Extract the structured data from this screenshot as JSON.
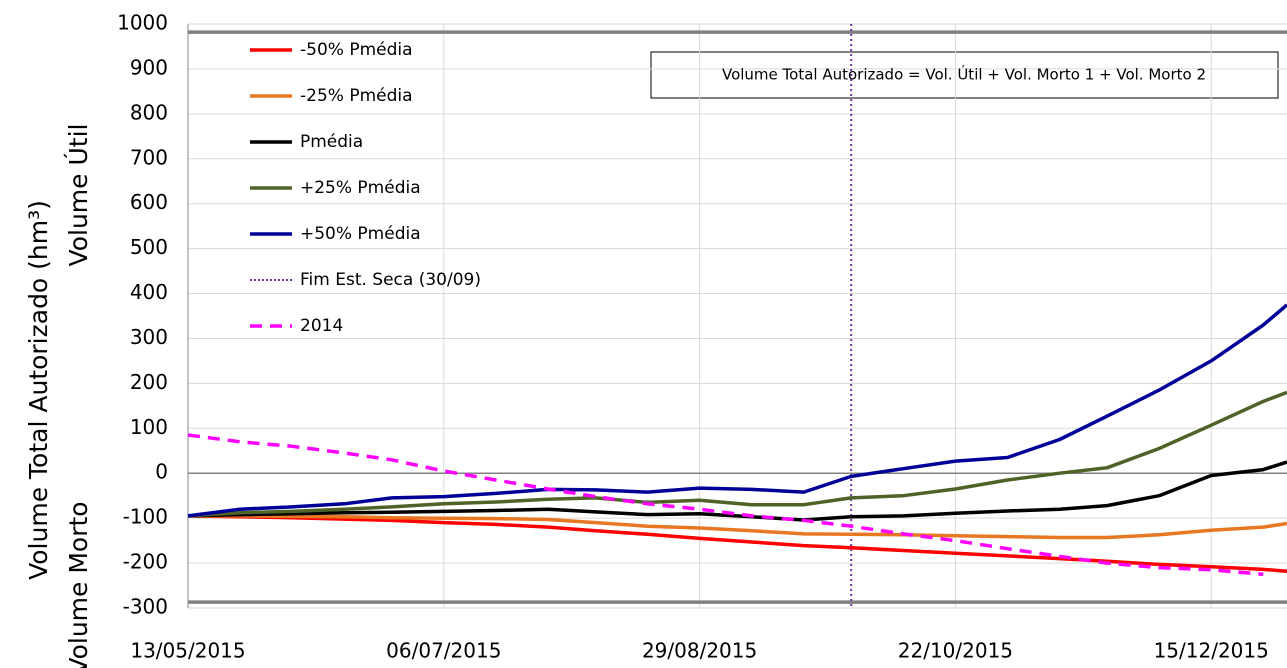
{
  "chart_data": {
    "type": "line",
    "y_labels": [
      "Volume Total Autorizado (hm³)",
      "Volume Útil",
      "Volume Morto"
    ],
    "y_label_colors": [
      "#000000",
      "#000000",
      "#ff0000"
    ],
    "annotation": "Volume Total Autorizado = Vol. Útil + Vol. Morto 1 + Vol. Morto 2",
    "x": [
      "13/05/2015",
      "24/05/2015",
      "04/06/2015",
      "15/06/2015",
      "25/06/2015",
      "06/07/2015",
      "17/07/2015",
      "28/07/2015",
      "07/08/2015",
      "18/08/2015",
      "29/08/2015",
      "09/09/2015",
      "20/09/2015",
      "30/09/2015",
      "11/10/2015",
      "22/10/2015",
      "02/11/2015",
      "13/11/2015",
      "23/11/2015",
      "04/12/2015",
      "15/12/2015",
      "26/12/2015",
      "31/12/2015"
    ],
    "series": [
      {
        "name": "-50% Pmédia",
        "color": "#ff0000",
        "dash": false,
        "values": [
          -95,
          -97,
          -99,
          -102,
          -105,
          -110,
          -114,
          -120,
          -128,
          -136,
          -145,
          -153,
          -161,
          -166,
          -172,
          -178,
          -184,
          -190,
          -196,
          -203,
          -208,
          -214,
          -218
        ]
      },
      {
        "name": "-25% Pmédia",
        "color": "#e87722",
        "dash": false,
        "values": [
          -95,
          -95,
          -96,
          -97,
          -99,
          -100,
          -101,
          -103,
          -110,
          -118,
          -122,
          -128,
          -135,
          -136,
          -137,
          -139,
          -141,
          -143,
          -143,
          -137,
          -127,
          -120,
          -112
        ]
      },
      {
        "name": "Pmédia",
        "color": "#000000",
        "dash": false,
        "values": [
          -95,
          -92,
          -90,
          -88,
          -87,
          -85,
          -83,
          -80,
          -86,
          -92,
          -90,
          -97,
          -104,
          -97,
          -95,
          -89,
          -84,
          -80,
          -72,
          -50,
          -5,
          8,
          25
        ]
      },
      {
        "name": "+25% Pmédia",
        "color": "#4f6228",
        "dash": false,
        "values": [
          -95,
          -88,
          -85,
          -80,
          -75,
          -68,
          -64,
          -58,
          -55,
          -65,
          -60,
          -70,
          -70,
          -55,
          -50,
          -35,
          -15,
          0,
          12,
          55,
          107,
          160,
          180
        ]
      },
      {
        "name": "+50% Pmédia",
        "color": "#000099",
        "dash": false,
        "values": [
          -95,
          -80,
          -75,
          -68,
          -55,
          -52,
          -45,
          -36,
          -37,
          -42,
          -33,
          -36,
          -42,
          -7,
          10,
          27,
          35,
          75,
          127,
          185,
          250,
          330,
          375
        ]
      },
      {
        "name": "2014",
        "color": "#ff00ff",
        "dash": true,
        "values": [
          85,
          70,
          60,
          45,
          30,
          5,
          -15,
          -35,
          -52,
          -68,
          -80,
          -95,
          -105,
          -118,
          -135,
          -150,
          -168,
          -185,
          -200,
          -210,
          -215,
          -225,
          null
        ]
      }
    ],
    "vlines": [
      {
        "name": "Fim Est. Seca (30/09)",
        "color": "#7030a0",
        "x": "30/09/2015"
      }
    ],
    "hlines": [
      982,
      0,
      -287
    ],
    "hline_color": "#808080",
    "xlim": [
      "13/05/2015",
      "31/12/2015"
    ],
    "xticks": [
      "13/05/2015",
      "06/07/2015",
      "29/08/2015",
      "22/10/2015",
      "15/12/2015"
    ],
    "ylim": [
      -300,
      1000
    ],
    "yticks": [
      -300,
      -200,
      -100,
      0,
      100,
      200,
      300,
      400,
      500,
      600,
      700,
      800,
      900,
      1000
    ],
    "grid": true,
    "legend": "top-left"
  }
}
